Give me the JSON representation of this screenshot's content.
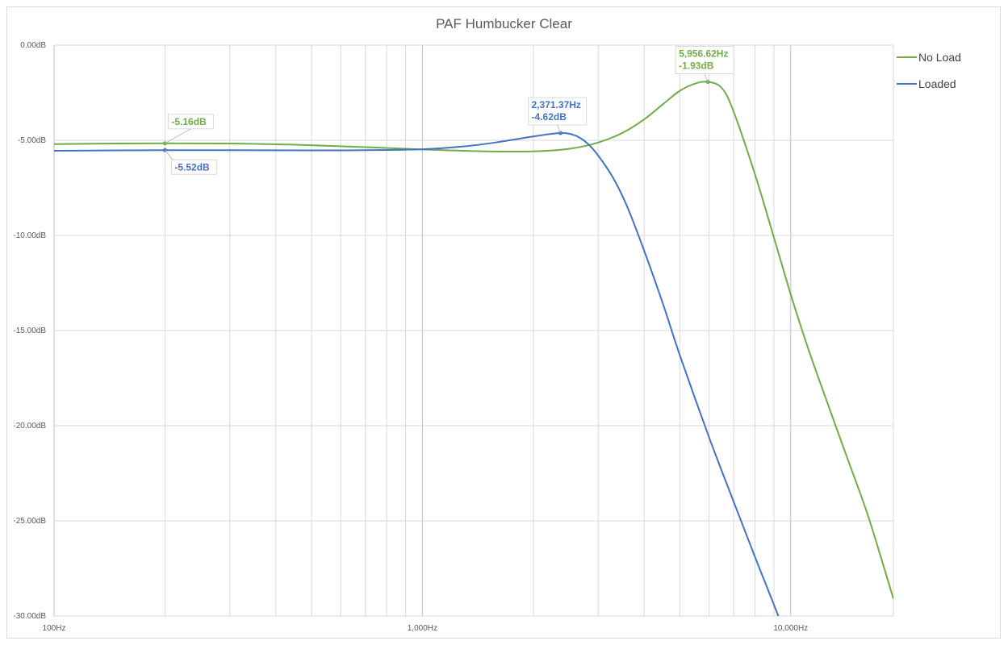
{
  "chart_data": {
    "type": "line",
    "title": "PAF Humbucker Clear",
    "xlabel": "",
    "ylabel": "",
    "x_scale": "log",
    "xlim": [
      100,
      19000
    ],
    "ylim": [
      -30,
      0
    ],
    "grid": true,
    "legend_position": "right",
    "y_ticks": [
      "0.00dB",
      "-5.00dB",
      "-10.00dB",
      "-15.00dB",
      "-20.00dB",
      "-25.00dB",
      "-30.00dB"
    ],
    "y_tick_values": [
      0,
      -5,
      -10,
      -15,
      -20,
      -25,
      -30
    ],
    "x_ticks": [
      "100Hz",
      "1,000Hz",
      "10,000Hz"
    ],
    "x_tick_values": [
      100,
      1000,
      10000
    ],
    "series": [
      {
        "name": "No Load",
        "color": "#70ad47",
        "points": [
          [
            100,
            -5.2
          ],
          [
            150,
            -5.17
          ],
          [
            200,
            -5.16
          ],
          [
            300,
            -5.17
          ],
          [
            400,
            -5.21
          ],
          [
            500,
            -5.26
          ],
          [
            700,
            -5.36
          ],
          [
            1000,
            -5.48
          ],
          [
            1500,
            -5.58
          ],
          [
            2000,
            -5.58
          ],
          [
            2500,
            -5.45
          ],
          [
            3000,
            -5.12
          ],
          [
            3500,
            -4.6
          ],
          [
            4000,
            -3.9
          ],
          [
            4500,
            -3.1
          ],
          [
            5000,
            -2.4
          ],
          [
            5500,
            -2.02
          ],
          [
            5956.62,
            -1.93
          ],
          [
            6500,
            -2.25
          ],
          [
            7000,
            -3.5
          ],
          [
            8000,
            -6.8
          ],
          [
            9000,
            -10.1
          ],
          [
            10000,
            -13.1
          ],
          [
            11000,
            -15.6
          ],
          [
            12000,
            -17.7
          ],
          [
            14000,
            -21.3
          ],
          [
            16000,
            -24.4
          ],
          [
            17500,
            -26.8
          ],
          [
            19000,
            -29.1
          ]
        ]
      },
      {
        "name": "Loaded",
        "color": "#4472c4",
        "points": [
          [
            100,
            -5.55
          ],
          [
            150,
            -5.53
          ],
          [
            200,
            -5.52
          ],
          [
            300,
            -5.52
          ],
          [
            500,
            -5.53
          ],
          [
            700,
            -5.52
          ],
          [
            1000,
            -5.47
          ],
          [
            1300,
            -5.32
          ],
          [
            1600,
            -5.1
          ],
          [
            2000,
            -4.8
          ],
          [
            2371.37,
            -4.62
          ],
          [
            2600,
            -4.75
          ],
          [
            2800,
            -5.15
          ],
          [
            3000,
            -5.8
          ],
          [
            3300,
            -7.0
          ],
          [
            3600,
            -8.5
          ],
          [
            4000,
            -10.8
          ],
          [
            4500,
            -13.6
          ],
          [
            5000,
            -16.3
          ],
          [
            6000,
            -20.6
          ],
          [
            7000,
            -24.0
          ],
          [
            8000,
            -26.9
          ],
          [
            9000,
            -29.4
          ],
          [
            9600,
            -30.8
          ]
        ]
      }
    ],
    "annotations": [
      {
        "series": "No Load",
        "x": 200,
        "y": -5.16,
        "text": "-5.16dB"
      },
      {
        "series": "Loaded",
        "x": 200,
        "y": -5.52,
        "text": "-5.52dB"
      },
      {
        "series": "Loaded",
        "x": 2371.37,
        "y": -4.62,
        "line1": "2,371.37Hz",
        "line2": "-4.62dB"
      },
      {
        "series": "No Load",
        "x": 5956.62,
        "y": -1.93,
        "line1": "5,956.62Hz",
        "line2": "-1.93dB"
      }
    ]
  }
}
